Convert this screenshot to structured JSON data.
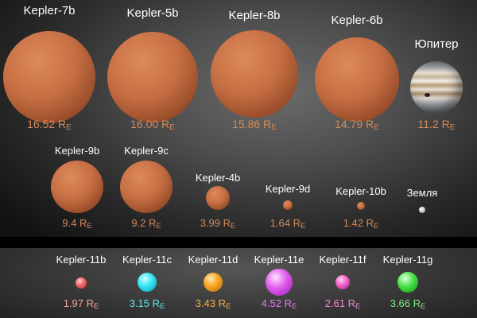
{
  "accent_colors": {
    "rocky": "#d28a5a",
    "earth": "#d9d9d9",
    "k11b": "#f3a3a3",
    "k11c": "#60e6f0",
    "k11d": "#f5b04a",
    "k11e": "#e47cf0",
    "k11f": "#f08ad0",
    "k11g": "#7cec7c"
  },
  "unit": "R",
  "unit_sub": "E",
  "rows": {
    "top": [
      {
        "name": "Kepler-7b",
        "value": "16.52"
      },
      {
        "name": "Kepler-5b",
        "value": "16.00"
      },
      {
        "name": "Kepler-8b",
        "value": "15.86"
      },
      {
        "name": "Kepler-6b",
        "value": "14.79"
      },
      {
        "name": "Юпитер",
        "value": "11.2"
      }
    ],
    "middle": [
      {
        "name": "Kepler-9b",
        "value": "9.4"
      },
      {
        "name": "Kepler-9c",
        "value": "9.2"
      },
      {
        "name": "Kepler-4b",
        "value": "3.99"
      },
      {
        "name": "Kepler-9d",
        "value": "1.64"
      },
      {
        "name": "Kepler-10b",
        "value": "1.42"
      },
      {
        "name": "Земля",
        "value": ""
      }
    ],
    "bottom": [
      {
        "name": "Kepler-11b",
        "value": "1.97"
      },
      {
        "name": "Kepler-11c",
        "value": "3.15"
      },
      {
        "name": "Kepler-11d",
        "value": "3.43"
      },
      {
        "name": "Kepler-11e",
        "value": "4.52"
      },
      {
        "name": "Kepler-11f",
        "value": "2.61"
      },
      {
        "name": "Kepler-11g",
        "value": "3.66"
      }
    ]
  }
}
